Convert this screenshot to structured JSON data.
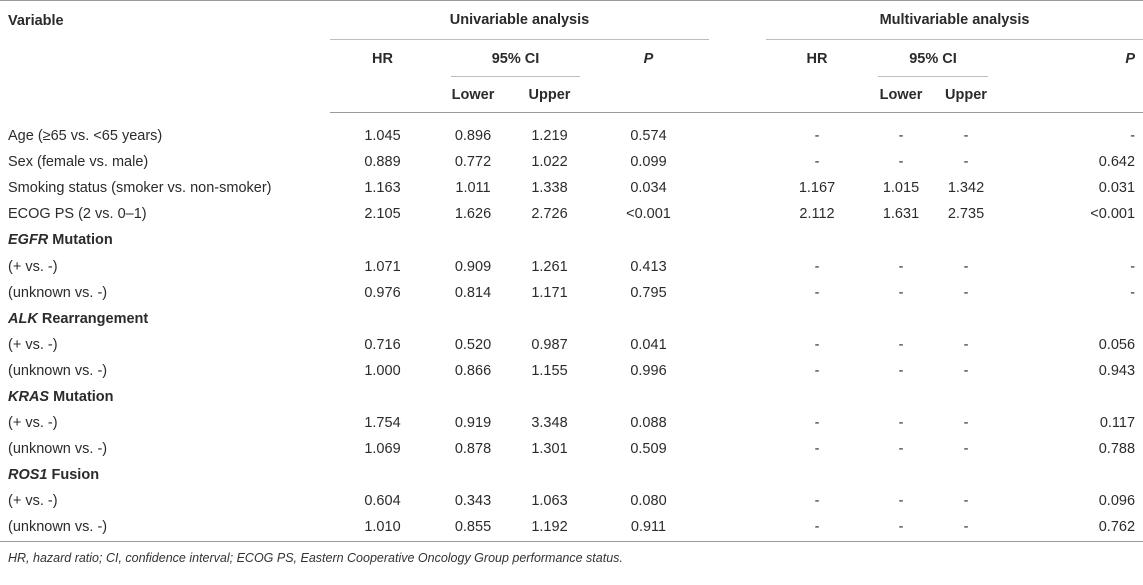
{
  "header": {
    "variable": "Variable",
    "univariable": "Univariable analysis",
    "multivariable": "Multivariable analysis",
    "hr": "HR",
    "ci": "95% CI",
    "p": "P",
    "lower": "Lower",
    "upper": "Upper"
  },
  "rows": [
    {
      "type": "data",
      "label": "Age (≥65 vs. <65 years)",
      "u_hr": "1.045",
      "u_lower": "0.896",
      "u_upper": "1.219",
      "u_p": "0.574",
      "m_hr": "-",
      "m_lower": "-",
      "m_upper": "-",
      "m_p": "-"
    },
    {
      "type": "data",
      "label": "Sex (female vs. male)",
      "u_hr": "0.889",
      "u_lower": "0.772",
      "u_upper": "1.022",
      "u_p": "0.099",
      "m_hr": "-",
      "m_lower": "-",
      "m_upper": "-",
      "m_p": "0.642"
    },
    {
      "type": "data",
      "label": "Smoking status (smoker vs. non-smoker)",
      "u_hr": "1.163",
      "u_lower": "1.011",
      "u_upper": "1.338",
      "u_p": "0.034",
      "m_hr": "1.167",
      "m_lower": "1.015",
      "m_upper": "1.342",
      "m_p": "0.031"
    },
    {
      "type": "data",
      "label": "ECOG PS (2 vs. 0–1)",
      "u_hr": "2.105",
      "u_lower": "1.626",
      "u_upper": "2.726",
      "u_p": "<0.001",
      "m_hr": "2.112",
      "m_lower": "1.631",
      "m_upper": "2.735",
      "m_p": "<0.001"
    },
    {
      "type": "section",
      "gene": "EGFR",
      "suffix": " Mutation"
    },
    {
      "type": "data",
      "label": "(+ vs. -)",
      "u_hr": "1.071",
      "u_lower": "0.909",
      "u_upper": "1.261",
      "u_p": "0.413",
      "m_hr": "-",
      "m_lower": "-",
      "m_upper": "-",
      "m_p": "-"
    },
    {
      "type": "data",
      "label": "(unknown vs. -)",
      "u_hr": "0.976",
      "u_lower": "0.814",
      "u_upper": "1.171",
      "u_p": "0.795",
      "m_hr": "-",
      "m_lower": "-",
      "m_upper": "-",
      "m_p": "-"
    },
    {
      "type": "section",
      "gene": "ALK",
      "suffix": " Rearrangement"
    },
    {
      "type": "data",
      "label": "(+ vs. -)",
      "u_hr": "0.716",
      "u_lower": "0.520",
      "u_upper": "0.987",
      "u_p": "0.041",
      "m_hr": "-",
      "m_lower": "-",
      "m_upper": "-",
      "m_p": "0.056"
    },
    {
      "type": "data",
      "label": "(unknown vs. -)",
      "u_hr": "1.000",
      "u_lower": "0.866",
      "u_upper": "1.155",
      "u_p": "0.996",
      "m_hr": "-",
      "m_lower": "-",
      "m_upper": "-",
      "m_p": "0.943"
    },
    {
      "type": "section",
      "gene": "KRAS",
      "suffix": " Mutation"
    },
    {
      "type": "data",
      "label": "(+ vs. -)",
      "u_hr": "1.754",
      "u_lower": "0.919",
      "u_upper": "3.348",
      "u_p": "0.088",
      "m_hr": "-",
      "m_lower": "-",
      "m_upper": "-",
      "m_p": "0.117"
    },
    {
      "type": "data",
      "label": "(unknown vs. -)",
      "u_hr": "1.069",
      "u_lower": "0.878",
      "u_upper": "1.301",
      "u_p": "0.509",
      "m_hr": "-",
      "m_lower": "-",
      "m_upper": "-",
      "m_p": "0.788"
    },
    {
      "type": "section",
      "gene": "ROS1",
      "suffix": " Fusion"
    },
    {
      "type": "data",
      "label": "(+ vs. -)",
      "u_hr": "0.604",
      "u_lower": "0.343",
      "u_upper": "1.063",
      "u_p": "0.080",
      "m_hr": "-",
      "m_lower": "-",
      "m_upper": "-",
      "m_p": "0.096"
    },
    {
      "type": "data",
      "label": "(unknown vs. -)",
      "u_hr": "1.010",
      "u_lower": "0.855",
      "u_upper": "1.192",
      "u_p": "0.911",
      "m_hr": "-",
      "m_lower": "-",
      "m_upper": "-",
      "m_p": "0.762"
    }
  ],
  "footnote": "HR, hazard ratio; CI, confidence interval; ECOG PS, Eastern Cooperative Oncology Group performance status."
}
